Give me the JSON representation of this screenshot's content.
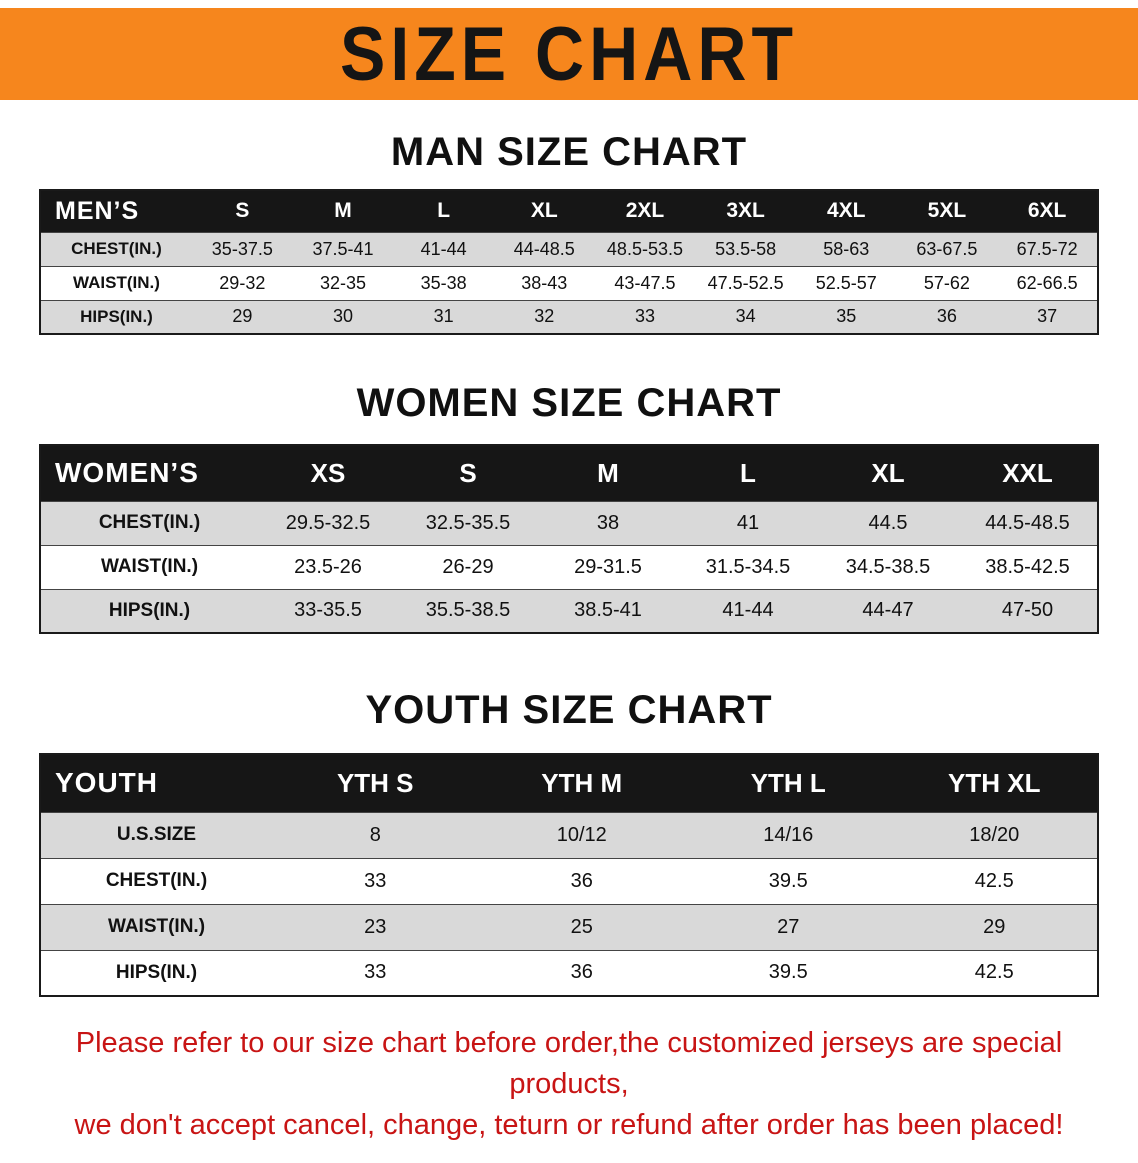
{
  "banner": {
    "title": "SIZE CHART"
  },
  "colors": {
    "banner_bg": "#f6861d",
    "header_bg": "#161616",
    "row_alt": "#d9d9d9",
    "disclaimer": "#c81414"
  },
  "sections": [
    {
      "heading": "MAN SIZE CHART",
      "table": {
        "corner": "MEN’S",
        "columns": [
          "S",
          "M",
          "L",
          "XL",
          "2XL",
          "3XL",
          "4XL",
          "5XL",
          "6XL"
        ],
        "rows": [
          {
            "label": "CHEST(IN.)",
            "values": [
              "35-37.5",
              "37.5-41",
              "41-44",
              "44-48.5",
              "48.5-53.5",
              "53.5-58",
              "58-63",
              "63-67.5",
              "67.5-72"
            ]
          },
          {
            "label": "WAIST(IN.)",
            "values": [
              "29-32",
              "32-35",
              "35-38",
              "38-43",
              "43-47.5",
              "47.5-52.5",
              "52.5-57",
              "57-62",
              "62-66.5"
            ]
          },
          {
            "label": "HIPS(IN.)",
            "values": [
              "29",
              "30",
              "31",
              "32",
              "33",
              "34",
              "35",
              "36",
              "37"
            ]
          }
        ]
      }
    },
    {
      "heading": "WOMEN SIZE CHART",
      "table": {
        "corner": "WOMEN’S",
        "columns": [
          "XS",
          "S",
          "M",
          "L",
          "XL",
          "XXL"
        ],
        "rows": [
          {
            "label": "CHEST(IN.)",
            "values": [
              "29.5-32.5",
              "32.5-35.5",
              "38",
              "41",
              "44.5",
              "44.5-48.5"
            ]
          },
          {
            "label": "WAIST(IN.)",
            "values": [
              "23.5-26",
              "26-29",
              "29-31.5",
              "31.5-34.5",
              "34.5-38.5",
              "38.5-42.5"
            ]
          },
          {
            "label": "HIPS(IN.)",
            "values": [
              "33-35.5",
              "35.5-38.5",
              "38.5-41",
              "41-44",
              "44-47",
              "47-50"
            ]
          }
        ]
      }
    },
    {
      "heading": "YOUTH SIZE CHART",
      "table": {
        "corner": "YOUTH",
        "columns": [
          "YTH S",
          "YTH M",
          "YTH L",
          "YTH XL"
        ],
        "rows": [
          {
            "label": "U.S.SIZE",
            "values": [
              "8",
              "10/12",
              "14/16",
              "18/20"
            ]
          },
          {
            "label": "CHEST(IN.)",
            "values": [
              "33",
              "36",
              "39.5",
              "42.5"
            ]
          },
          {
            "label": "WAIST(IN.)",
            "values": [
              "23",
              "25",
              "27",
              "29"
            ]
          },
          {
            "label": "HIPS(IN.)",
            "values": [
              "33",
              "36",
              "39.5",
              "42.5"
            ]
          }
        ]
      }
    }
  ],
  "disclaimer": {
    "line1": "Please refer to our size chart before order,the customized jerseys are special products,",
    "line2": "we don't accept cancel, change, teturn or refund after order has been placed!"
  }
}
